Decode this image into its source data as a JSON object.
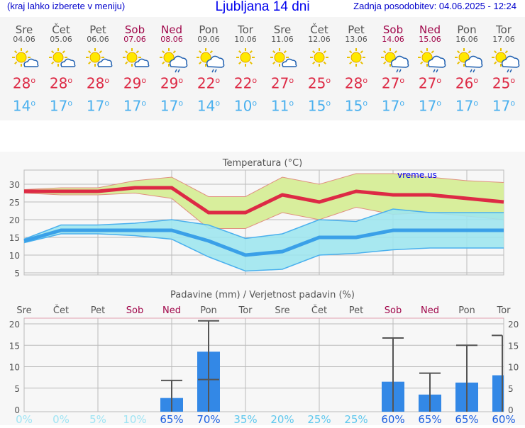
{
  "header": {
    "hint": "(kraj lahko izberete v meniju)",
    "title": "Ljubljana 14 dni",
    "updated": "Zadnja posodobitev: 04.06.2025 - 12:24"
  },
  "days": [
    {
      "name": "Sre",
      "date": "04.06",
      "weekend": false,
      "icon": "sun-cloud-icon",
      "max": "28",
      "min": "14"
    },
    {
      "name": "Čet",
      "date": "05.06",
      "weekend": false,
      "icon": "sun-cloud-icon",
      "max": "28",
      "min": "17"
    },
    {
      "name": "Pet",
      "date": "06.06",
      "weekend": false,
      "icon": "sun-cloud-icon",
      "max": "28",
      "min": "17"
    },
    {
      "name": "Sob",
      "date": "07.06",
      "weekend": true,
      "icon": "sun-cloud-icon",
      "max": "29",
      "min": "17"
    },
    {
      "name": "Ned",
      "date": "08.06",
      "weekend": true,
      "icon": "sun-rain-icon",
      "max": "29",
      "min": "17"
    },
    {
      "name": "Pon",
      "date": "09.06",
      "weekend": false,
      "icon": "sun-rain-icon",
      "max": "22",
      "min": "14"
    },
    {
      "name": "Tor",
      "date": "10.06",
      "weekend": false,
      "icon": "sun-icon",
      "max": "22",
      "min": "10"
    },
    {
      "name": "Sre",
      "date": "11.06",
      "weekend": false,
      "icon": "sun-cloud-icon",
      "max": "27",
      "min": "11"
    },
    {
      "name": "Čet",
      "date": "12.06",
      "weekend": false,
      "icon": "sun-icon",
      "max": "25",
      "min": "15"
    },
    {
      "name": "Pet",
      "date": "13.06",
      "weekend": false,
      "icon": "sun-icon",
      "max": "28",
      "min": "15"
    },
    {
      "name": "Sob",
      "date": "14.06",
      "weekend": true,
      "icon": "sun-rain-icon",
      "max": "27",
      "min": "17"
    },
    {
      "name": "Ned",
      "date": "15.06",
      "weekend": true,
      "icon": "sun-rain-icon",
      "max": "27",
      "min": "17"
    },
    {
      "name": "Pon",
      "date": "16.06",
      "weekend": false,
      "icon": "sun-rain-icon",
      "max": "26",
      "min": "17"
    },
    {
      "name": "Tor",
      "date": "17.06",
      "weekend": false,
      "icon": "sun-rain-icon",
      "max": "25",
      "min": "17"
    }
  ],
  "degree": "o",
  "colors": {
    "max": "#dd2a45",
    "min": "#4ab0ee",
    "maxband": "#d8ee9c",
    "minband": "#9ee6ee",
    "bar": "#3388e6"
  },
  "chart_data": [
    {
      "type": "line",
      "title": "Temperatura (°C)",
      "watermark": "vreme.us",
      "ylim": [
        4.4,
        34
      ],
      "yticks": [
        5,
        10,
        15,
        20,
        25,
        30
      ],
      "series": [
        {
          "name": "max",
          "values": [
            28,
            28,
            28,
            29,
            29,
            22,
            22,
            27,
            25,
            28,
            27,
            27,
            26,
            25
          ],
          "upper": [
            28.5,
            29,
            29,
            31,
            32,
            26.5,
            26.5,
            32,
            30,
            33,
            33,
            32,
            31,
            30.5
          ],
          "lower": [
            27.5,
            27,
            27,
            27.5,
            26,
            17.5,
            17.5,
            22,
            20,
            23.5,
            21.5,
            22,
            21,
            20
          ]
        },
        {
          "name": "min",
          "values": [
            14,
            17,
            17,
            17,
            17,
            14,
            10,
            11,
            15,
            15,
            17,
            17,
            17,
            17
          ],
          "upper": [
            14.5,
            18.5,
            18.5,
            19,
            20,
            18.5,
            14.7,
            16,
            20,
            19.5,
            23,
            22,
            22,
            22
          ],
          "lower": [
            13.5,
            16,
            16,
            15.5,
            14.5,
            9.5,
            5.5,
            6,
            10,
            10.5,
            11.5,
            12,
            12,
            12
          ]
        }
      ]
    },
    {
      "type": "bar",
      "title": "Padavine (mm) / Verjetnost padavin (%)",
      "categories": [
        "Sre",
        "Čet",
        "Pet",
        "Sob",
        "Ned",
        "Pon",
        "Tor",
        "Sre",
        "Čet",
        "Pet",
        "Sob",
        "Ned",
        "Pon",
        "Tor"
      ],
      "ylim": [
        0,
        20.5
      ],
      "yticks": [
        0,
        5,
        10,
        15,
        20
      ],
      "values": [
        0,
        0,
        0,
        0,
        2.7,
        13.5,
        0,
        0,
        0,
        0,
        6.5,
        3.5,
        6.3,
        8
      ],
      "err_high": [
        null,
        null,
        null,
        null,
        6.8,
        20.7,
        null,
        null,
        null,
        null,
        16.7,
        8.5,
        15,
        17.3
      ],
      "err_low": [
        null,
        null,
        null,
        null,
        0,
        7,
        null,
        null,
        null,
        null,
        0,
        0,
        0,
        0
      ],
      "probability": [
        "0%",
        "0%",
        "5%",
        "10%",
        "65%",
        "70%",
        "35%",
        "20%",
        "25%",
        "25%",
        "60%",
        "65%",
        "65%",
        "60%"
      ]
    }
  ]
}
